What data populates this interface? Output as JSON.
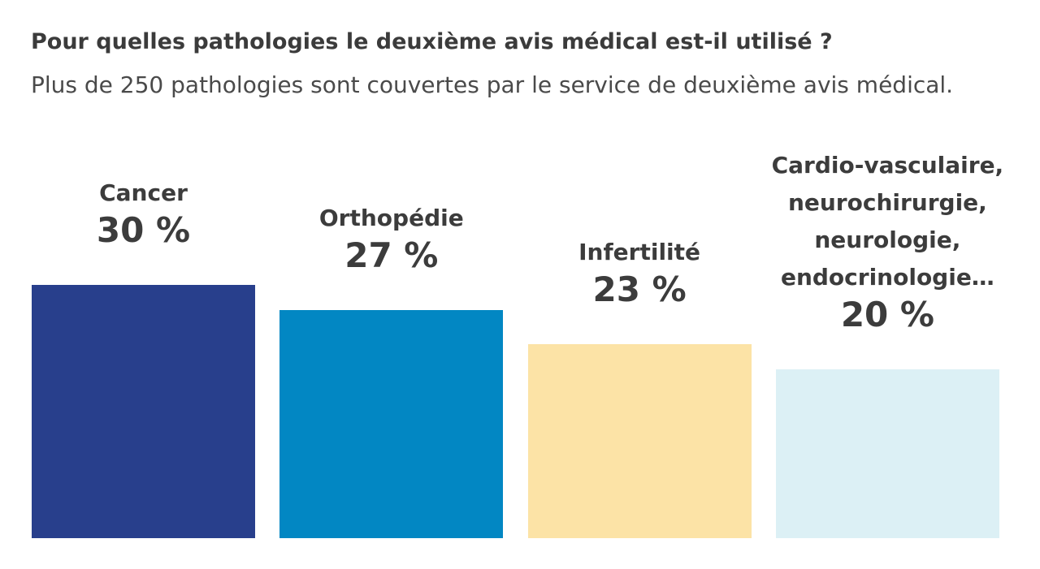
{
  "chart_data": {
    "type": "bar",
    "title": "Pour quelles pathologies le deuxième avis médical est-il utilisé ?",
    "subtitle": "Plus de 250 pathologies sont couvertes par le service de deuxième avis médical.",
    "categories": [
      "Cancer",
      "Orthopédie",
      "Infertilité",
      "Cardio-vasculaire, neurochirurgie, neurologie, endocrinologie…"
    ],
    "category_lines": [
      [
        "Cancer"
      ],
      [
        "Orthopédie"
      ],
      [
        "Infertilité"
      ],
      [
        "Cardio-vasculaire,",
        "neurochirurgie,",
        "neurologie,",
        "endocrinologie…"
      ]
    ],
    "values": [
      30,
      27,
      23,
      20
    ],
    "value_labels": [
      "30 %",
      "27 %",
      "23 %",
      "20 %"
    ],
    "colors": [
      "#283f8c",
      "#0287c3",
      "#fce3a6",
      "#dcf0f5"
    ],
    "grid": false,
    "legend": "none",
    "axes_visible": false
  }
}
